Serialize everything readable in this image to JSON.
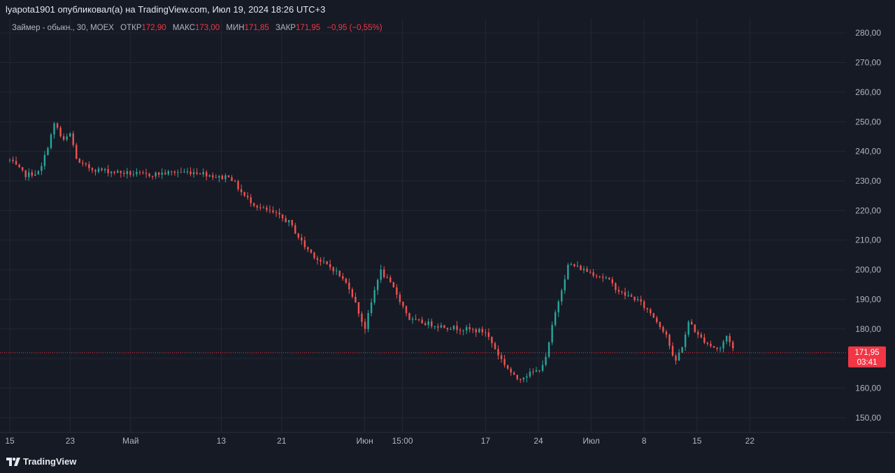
{
  "header": {
    "publish_line": "lyapota1901 опубликовал(а) на TradingView.com, Июл 19, 2024 18:26 UTC+3"
  },
  "legend": {
    "symbol": "Займер - обыкн., 30, MOEX",
    "open_label": "ОТКР",
    "open_value": "172,90",
    "high_label": "МАКС",
    "high_value": "173,00",
    "low_label": "МИН",
    "low_value": "171,85",
    "close_label": "ЗАКР",
    "close_value": "171,95",
    "change": "−0,95 (−0,55%)"
  },
  "price_badge": {
    "price": "171,95",
    "countdown": "03:41"
  },
  "footer": {
    "brand": "TradingView"
  },
  "colors": {
    "background": "#161a25",
    "grid": "#232734",
    "up": "#26a69a",
    "down": "#ef5350",
    "badge": "#f23645",
    "axis_text": "#b2b5be"
  },
  "chart_data": {
    "type": "line",
    "title": "Займер - обыкн., 30, MOEX",
    "interval": "30",
    "y_axis": {
      "min": 145,
      "max": 285,
      "position": "right",
      "ticks": [
        150,
        160,
        170,
        180,
        190,
        200,
        210,
        220,
        230,
        240,
        250,
        260,
        270,
        280
      ],
      "tick_labels": [
        "150,00",
        "160,00",
        "170,00",
        "180,00",
        "190,00",
        "200,00",
        "210,00",
        "220,00",
        "230,00",
        "240,00",
        "250,00",
        "260,00",
        "270,00",
        "280,00"
      ]
    },
    "x_axis": {
      "tick_labels": [
        "15",
        "23",
        "Май",
        "13",
        "21",
        "Июн",
        "15:00",
        "17",
        "24",
        "Июл",
        "8",
        "15",
        "22"
      ],
      "tick_dates": [
        "2024-04-15",
        "2024-04-23",
        "2024-05-01",
        "2024-05-13",
        "2024-05-21",
        "2024-06-01",
        "2024-06-06",
        "2024-06-17",
        "2024-06-24",
        "2024-07-01",
        "2024-07-08",
        "2024-07-15",
        "2024-07-22"
      ],
      "grid": true
    },
    "last_price": 171.95,
    "series": [
      {
        "values": [
          [
            "2024-04-15",
            237
          ],
          [
            "2024-04-17",
            232
          ],
          [
            "2024-04-19",
            233
          ],
          [
            "2024-04-21",
            250
          ],
          [
            "2024-04-22",
            243
          ],
          [
            "2024-04-23",
            246
          ],
          [
            "2024-04-24",
            236
          ],
          [
            "2024-04-26",
            234
          ],
          [
            "2024-04-29",
            233
          ],
          [
            "2024-05-03",
            232
          ],
          [
            "2024-05-07",
            233
          ],
          [
            "2024-05-10",
            233
          ],
          [
            "2024-05-13",
            231
          ],
          [
            "2024-05-14",
            232
          ],
          [
            "2024-05-16",
            225
          ],
          [
            "2024-05-18",
            221
          ],
          [
            "2024-05-20",
            219
          ],
          [
            "2024-05-22",
            216
          ],
          [
            "2024-05-24",
            208
          ],
          [
            "2024-05-26",
            203
          ],
          [
            "2024-05-28",
            200
          ],
          [
            "2024-05-30",
            194
          ],
          [
            "2024-06-01",
            180
          ],
          [
            "2024-06-03",
            200
          ],
          [
            "2024-06-05",
            193
          ],
          [
            "2024-06-06",
            188
          ],
          [
            "2024-06-07",
            183
          ],
          [
            "2024-06-11",
            181
          ],
          [
            "2024-06-14",
            180
          ],
          [
            "2024-06-17",
            179
          ],
          [
            "2024-06-19",
            170
          ],
          [
            "2024-06-21",
            163
          ],
          [
            "2024-06-24",
            166
          ],
          [
            "2024-06-25",
            170
          ],
          [
            "2024-06-26",
            183
          ],
          [
            "2024-06-27",
            193
          ],
          [
            "2024-06-28",
            202
          ],
          [
            "2024-07-01",
            199
          ],
          [
            "2024-07-03",
            197
          ],
          [
            "2024-07-05",
            192
          ],
          [
            "2024-07-07",
            190
          ],
          [
            "2024-07-09",
            185
          ],
          [
            "2024-07-11",
            178
          ],
          [
            "2024-07-12",
            168
          ],
          [
            "2024-07-13",
            174
          ],
          [
            "2024-07-14",
            183
          ],
          [
            "2024-07-15",
            178
          ],
          [
            "2024-07-17",
            174
          ],
          [
            "2024-07-18",
            173
          ],
          [
            "2024-07-19",
            178
          ],
          [
            "2024-07-20",
            171.95
          ]
        ]
      }
    ],
    "grid": true,
    "legend_position": "top-left"
  }
}
